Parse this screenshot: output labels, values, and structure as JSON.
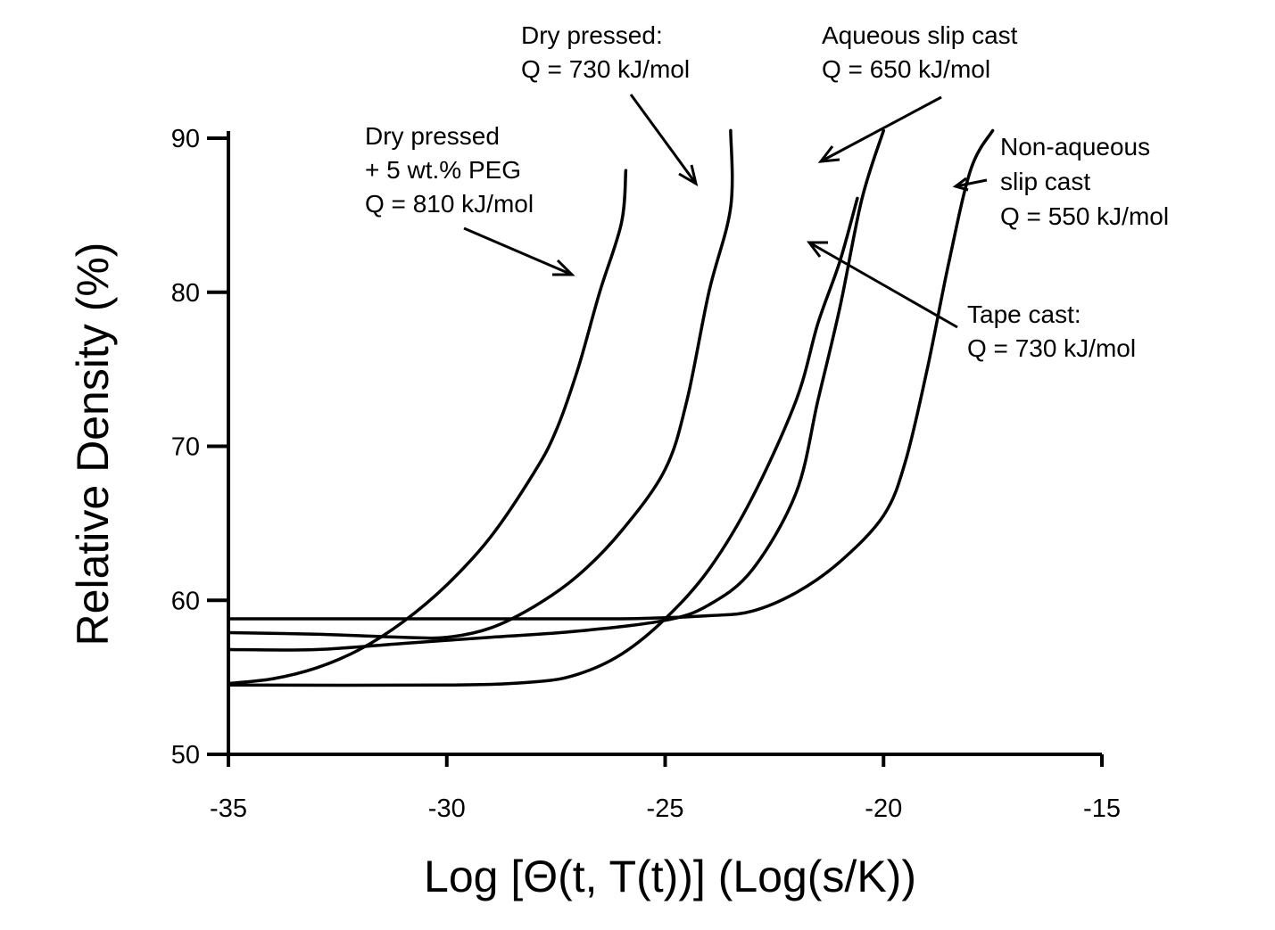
{
  "chart_data": {
    "type": "line",
    "xlabel": "Log [Θ(t, T(t))] (Log(s/K))",
    "ylabel": "Relative Density (%)",
    "xlim": [
      -35,
      -15
    ],
    "ylim": [
      50,
      90
    ],
    "xticks": [
      -35,
      -30,
      -25,
      -20,
      -15
    ],
    "yticks": [
      50,
      60,
      70,
      80,
      90
    ],
    "grid": false,
    "legend": "none",
    "series": [
      {
        "points": [
          [
            -35,
            54.6
          ],
          [
            -34,
            54.9
          ],
          [
            -33,
            55.6
          ],
          [
            -32,
            56.8
          ],
          [
            -31,
            58.6
          ],
          [
            -30,
            61.0
          ],
          [
            -29,
            64.1
          ],
          [
            -28,
            68.3
          ],
          [
            -27.5,
            71.0
          ],
          [
            -27,
            75.0
          ],
          [
            -26.5,
            80.0
          ],
          [
            -26,
            84.5
          ],
          [
            -25.9,
            87.9
          ]
        ]
      },
      {
        "points": [
          [
            -35,
            57.9
          ],
          [
            -33,
            57.8
          ],
          [
            -31,
            57.6
          ],
          [
            -30,
            57.6
          ],
          [
            -29,
            58.2
          ],
          [
            -28,
            59.6
          ],
          [
            -27,
            61.6
          ],
          [
            -26,
            64.5
          ],
          [
            -25,
            68.5
          ],
          [
            -24.5,
            73.0
          ],
          [
            -24,
            80.0
          ],
          [
            -23.5,
            85.5
          ],
          [
            -23.5,
            90.5
          ]
        ]
      },
      {
        "points": [
          [
            -35,
            56.8
          ],
          [
            -33,
            56.8
          ],
          [
            -31,
            57.2
          ],
          [
            -29,
            57.6
          ],
          [
            -27,
            58.0
          ],
          [
            -25,
            58.7
          ],
          [
            -24,
            59.7
          ],
          [
            -23,
            62.0
          ],
          [
            -22,
            67.0
          ],
          [
            -21.5,
            73.0
          ],
          [
            -21,
            79.0
          ],
          [
            -20.5,
            86.0
          ],
          [
            -20,
            90.5
          ]
        ]
      },
      {
        "points": [
          [
            -35,
            54.5
          ],
          [
            -30,
            54.5
          ],
          [
            -28,
            54.7
          ],
          [
            -27,
            55.2
          ],
          [
            -26,
            56.5
          ],
          [
            -25,
            58.8
          ],
          [
            -24,
            62.0
          ],
          [
            -23,
            66.7
          ],
          [
            -22,
            73.0
          ],
          [
            -21.5,
            78.0
          ],
          [
            -21,
            82.0
          ],
          [
            -20.6,
            86.1
          ]
        ]
      },
      {
        "points": [
          [
            -35,
            58.8
          ],
          [
            -30,
            58.8
          ],
          [
            -26,
            58.8
          ],
          [
            -24,
            59.0
          ],
          [
            -23,
            59.3
          ],
          [
            -22,
            60.5
          ],
          [
            -21,
            62.5
          ],
          [
            -20,
            65.5
          ],
          [
            -19.5,
            69.0
          ],
          [
            -19,
            75.0
          ],
          [
            -18.5,
            82.0
          ],
          [
            -18,
            88.0
          ],
          [
            -17.5,
            90.5
          ]
        ]
      }
    ],
    "annotations": [
      {
        "lines": [
          "Dry pressed",
          "+ 5 wt.% PEG",
          "Q = 810 kJ/mol"
        ]
      },
      {
        "lines": [
          "Dry pressed:",
          "Q = 730 kJ/mol"
        ]
      },
      {
        "lines": [
          "Aqueous slip cast",
          "Q = 650 kJ/mol"
        ]
      },
      {
        "lines": [
          "Non-aqueous",
          "slip cast",
          "Q = 550 kJ/mol"
        ]
      },
      {
        "lines": [
          "Tape cast:",
          "Q = 730 kJ/mol"
        ]
      }
    ]
  }
}
